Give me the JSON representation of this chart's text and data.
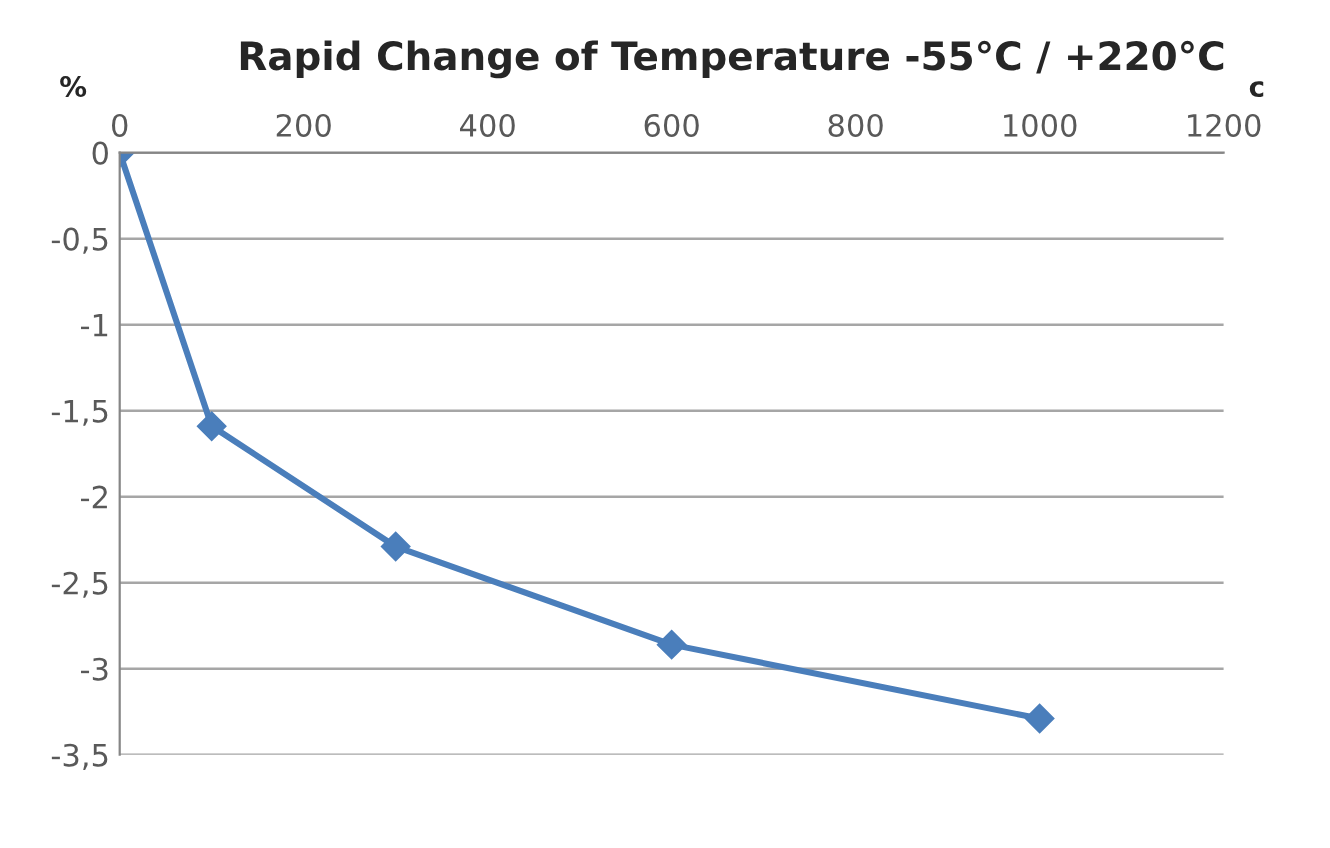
{
  "chart_data": {
    "type": "line",
    "title": "Rapid Change of Temperature -55°C / +220°C",
    "xlabel": "c",
    "ylabel": "%",
    "x": [
      0,
      100,
      300,
      600,
      1000
    ],
    "series": [
      {
        "color": "#4a7ebb",
        "values": [
          0,
          -1.59,
          -2.29,
          -2.86,
          -3.29
        ]
      }
    ],
    "xlim": [
      0,
      1200
    ],
    "xticks": [
      0,
      200,
      400,
      600,
      800,
      1000,
      1200
    ],
    "ylim": [
      -3.5,
      0
    ],
    "yticks": [
      0,
      {
        "value": -0.5,
        "label": "-0,5"
      },
      -1,
      {
        "value": -1.5,
        "label": "-1,5"
      },
      -2,
      {
        "value": -2.5,
        "label": "-2,5"
      },
      -3,
      {
        "value": -3.5,
        "label": "-3,5"
      }
    ],
    "grid": "y",
    "marker": "diamond",
    "line_style": "solid",
    "legend": false
  }
}
